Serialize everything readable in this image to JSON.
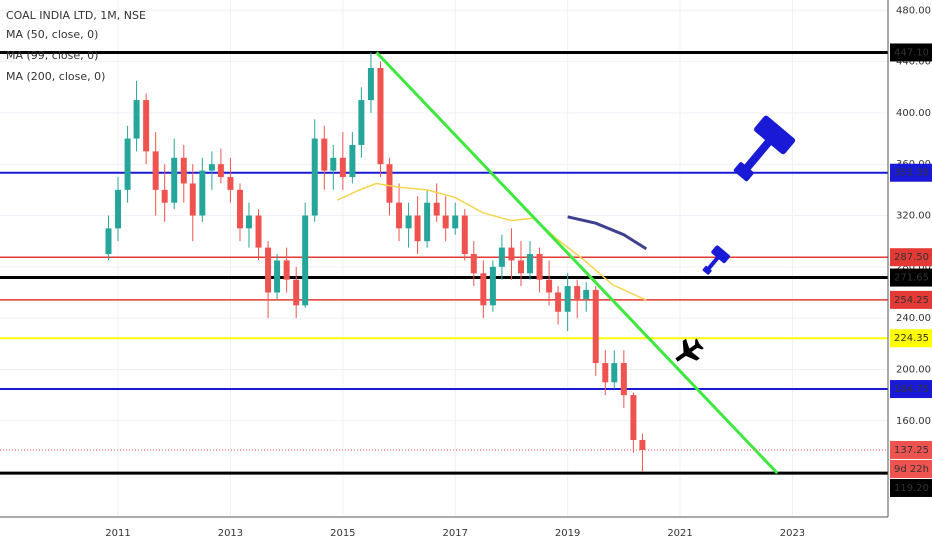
{
  "chart_data": {
    "type": "candlestick",
    "title": "COAL INDIA LTD, 1M, NSE",
    "x": [
      2010.83,
      2011.0,
      2011.17,
      2011.33,
      2011.5,
      2011.67,
      2011.83,
      2012.0,
      2012.17,
      2012.33,
      2012.5,
      2012.67,
      2012.83,
      2013.0,
      2013.17,
      2013.33,
      2013.5,
      2013.67,
      2013.83,
      2014.0,
      2014.17,
      2014.33,
      2014.5,
      2014.67,
      2014.83,
      2015.0,
      2015.17,
      2015.33,
      2015.5,
      2015.67,
      2015.83,
      2016.0,
      2016.17,
      2016.33,
      2016.5,
      2016.67,
      2016.83,
      2017.0,
      2017.17,
      2017.33,
      2017.5,
      2017.67,
      2017.83,
      2018.0,
      2018.17,
      2018.33,
      2018.5,
      2018.67,
      2018.83,
      2019.0,
      2019.17,
      2019.33,
      2019.5,
      2019.67,
      2019.83,
      2020.0,
      2020.17,
      2020.33
    ],
    "open": [
      290,
      310,
      340,
      380,
      410,
      370,
      340,
      330,
      365,
      345,
      320,
      355,
      360,
      350,
      340,
      310,
      320,
      295,
      260,
      285,
      270,
      250,
      320,
      380,
      355,
      365,
      350,
      375,
      410,
      435,
      360,
      330,
      310,
      320,
      300,
      330,
      320,
      310,
      320,
      290,
      275,
      250,
      280,
      295,
      285,
      275,
      290,
      270,
      260,
      245,
      265,
      255,
      262,
      205,
      190,
      205,
      180,
      145
    ],
    "high": [
      320,
      350,
      390,
      425,
      415,
      385,
      360,
      380,
      375,
      360,
      365,
      370,
      372,
      365,
      345,
      330,
      325,
      300,
      290,
      295,
      280,
      330,
      395,
      390,
      375,
      385,
      385,
      420,
      447.1,
      440,
      365,
      345,
      330,
      335,
      340,
      345,
      335,
      330,
      325,
      300,
      285,
      285,
      305,
      310,
      300,
      300,
      295,
      285,
      265,
      275,
      270,
      268,
      265,
      215,
      215,
      215,
      182,
      150
    ],
    "low": [
      285,
      300,
      330,
      370,
      360,
      320,
      315,
      325,
      330,
      300,
      315,
      340,
      345,
      330,
      300,
      295,
      285,
      240,
      255,
      260,
      240,
      248,
      315,
      340,
      340,
      340,
      345,
      365,
      400,
      350,
      320,
      300,
      295,
      290,
      295,
      315,
      300,
      305,
      285,
      265,
      240,
      245,
      270,
      270,
      265,
      270,
      260,
      250,
      235,
      230,
      240,
      245,
      195,
      180,
      185,
      170,
      135,
      120
    ],
    "close": [
      310,
      340,
      380,
      410,
      370,
      340,
      330,
      365,
      345,
      320,
      355,
      360,
      350,
      340,
      310,
      320,
      295,
      260,
      285,
      270,
      250,
      320,
      380,
      355,
      365,
      350,
      375,
      410,
      435,
      360,
      330,
      310,
      320,
      300,
      330,
      320,
      310,
      320,
      290,
      275,
      250,
      280,
      295,
      285,
      275,
      290,
      270,
      260,
      245,
      265,
      255,
      262,
      205,
      190,
      205,
      180,
      145,
      137.25
    ],
    "up_color": "#26a69a",
    "down_color": "#ef5350",
    "xlim": [
      2008.9,
      2024.7
    ],
    "xticks": [
      2011,
      2013,
      2015,
      2017,
      2019,
      2021,
      2023
    ],
    "ylim": [
      85,
      488
    ],
    "yticks": [
      {
        "value": 160,
        "label": "160.00"
      },
      {
        "value": 200,
        "label": "200.00"
      },
      {
        "value": 240,
        "label": "240.00"
      },
      {
        "value": 280,
        "label": "280.00"
      },
      {
        "value": 320,
        "label": "320.00"
      },
      {
        "value": 360,
        "label": "360.00"
      },
      {
        "value": 400,
        "label": "400.00"
      },
      {
        "value": 440,
        "label": "440.00"
      },
      {
        "value": 480,
        "label": "480.00"
      }
    ],
    "grid": true,
    "indicators": [
      {
        "name": "MA (50, close, 0)",
        "color": "#f7d44c",
        "x": [
          2014.9,
          2015.3,
          2015.6,
          2016.0,
          2016.5,
          2017.0,
          2017.5,
          2018.0,
          2018.4,
          2018.8,
          2019.3,
          2019.8,
          2020.4
        ],
        "values": [
          332,
          340,
          345,
          342,
          340,
          334,
          322,
          316,
          318,
          302,
          285,
          266,
          254
        ]
      },
      {
        "name": "MA (99, close, 0)",
        "color": "#3f3f8f",
        "x": [
          2019.0,
          2019.5,
          2020.0,
          2020.4
        ],
        "values": [
          319,
          314,
          305,
          294
        ]
      },
      {
        "name": "MA (200, close, 0)"
      }
    ],
    "levels": [
      {
        "value": 447.1,
        "label": "447.10",
        "color": "#000000"
      },
      {
        "value": 353.35,
        "label": "353.35",
        "color": "#1a1ad6"
      },
      {
        "value": 287.5,
        "label": "287.50",
        "color": "#e53935"
      },
      {
        "value": 271.65,
        "label": "271.65",
        "color": "#000000"
      },
      {
        "value": 254.25,
        "label": "254.25",
        "color": "#e53935"
      },
      {
        "value": 224.35,
        "label": "224.35",
        "color": "#ffff00"
      },
      {
        "value": 184.75,
        "label": "184.75",
        "color": "#1a1ad6"
      },
      {
        "value": 119.2,
        "label": "119.20",
        "color": "#000000"
      }
    ],
    "trendline": {
      "x": [
        2015.6,
        2022.73
      ],
      "values": [
        447.1,
        119.2
      ],
      "color": "#3ee83e"
    },
    "last_price": {
      "value": 137.25,
      "label": "137.25",
      "countdown": "9d 22h",
      "color": "#ef5350"
    }
  }
}
